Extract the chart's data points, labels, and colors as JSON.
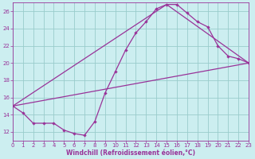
{
  "xlabel": "Windchill (Refroidissement éolien,°C)",
  "bg_color": "#cceef0",
  "line_color": "#993399",
  "grid_color": "#99cccc",
  "xmin": 0,
  "xmax": 23,
  "ymin": 11,
  "ymax": 27,
  "yticks": [
    12,
    14,
    16,
    18,
    20,
    22,
    24,
    26
  ],
  "xticks": [
    0,
    1,
    2,
    3,
    4,
    5,
    6,
    7,
    8,
    9,
    10,
    11,
    12,
    13,
    14,
    15,
    16,
    17,
    18,
    19,
    20,
    21,
    22,
    23
  ],
  "curve1_x": [
    0,
    1,
    2,
    3,
    4,
    5,
    6,
    7,
    8,
    9,
    10,
    11,
    12,
    13,
    14,
    15,
    16,
    17,
    18,
    19,
    20,
    21,
    22,
    23
  ],
  "curve1_y": [
    15.0,
    14.2,
    13.0,
    13.0,
    13.0,
    12.2,
    11.8,
    11.6,
    13.2,
    16.5,
    19.0,
    21.5,
    23.5,
    24.8,
    26.3,
    26.8,
    26.8,
    25.8,
    24.8,
    24.2,
    22.0,
    20.8,
    20.5,
    20.0
  ],
  "curve2_x": [
    0,
    23
  ],
  "curve2_y": [
    15.0,
    20.0
  ],
  "curve3_x": [
    0,
    15,
    23
  ],
  "curve3_y": [
    15.0,
    26.8,
    20.0
  ],
  "xlabel_fontsize": 5.5,
  "tick_fontsize": 5.0,
  "linewidth": 0.9,
  "markersize": 2.2
}
